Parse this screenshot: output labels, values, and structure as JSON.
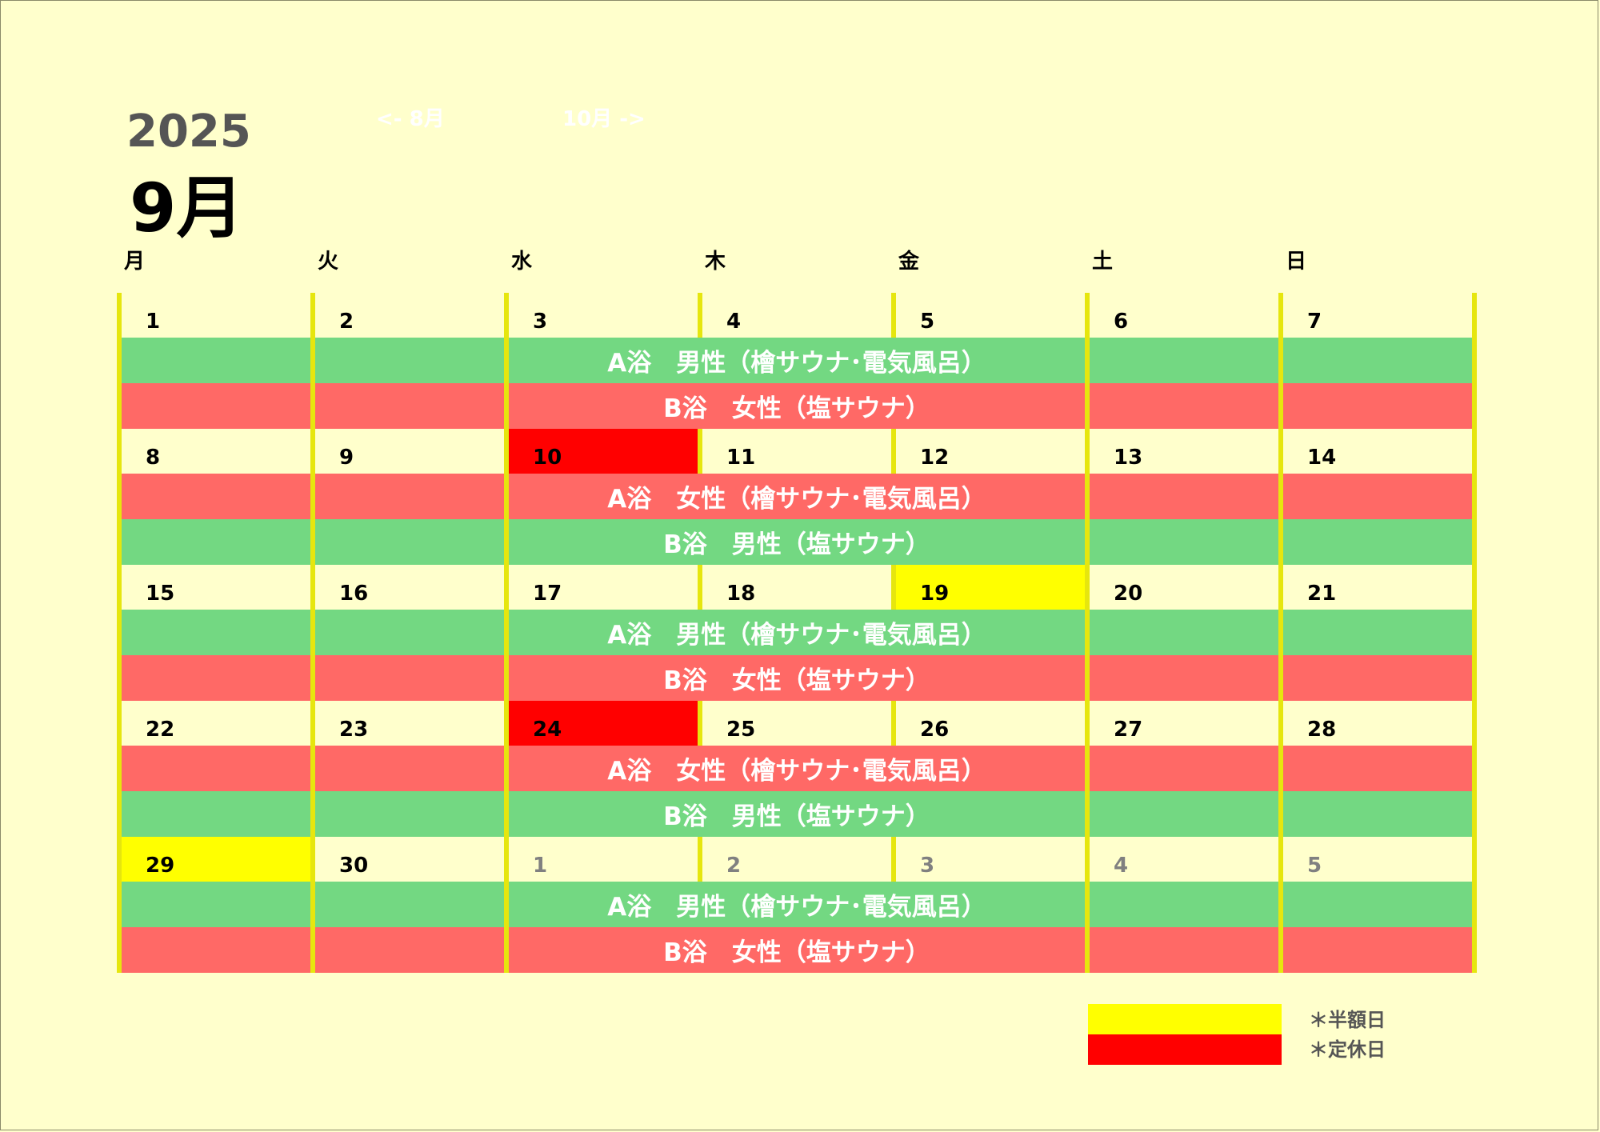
{
  "header": {
    "year": "2025",
    "month": "9月",
    "prev_link": "<- 8月",
    "next_link": "10月 ->"
  },
  "weekdays": [
    "月",
    "火",
    "水",
    "木",
    "金",
    "土",
    "日"
  ],
  "colors": {
    "background": "#ffffcc",
    "cell": "#ffffcc",
    "green_band": "#73d882",
    "red_band": "#ff6966",
    "half_price": "#ffff00",
    "closed": "#ff0000",
    "divider": "#e6e60e",
    "other_month_text": "#808080"
  },
  "weeks": [
    {
      "days": [
        {
          "label": "1",
          "status": "normal",
          "current_month": true
        },
        {
          "label": "2",
          "status": "normal",
          "current_month": true
        },
        {
          "label": "3",
          "status": "normal",
          "current_month": true
        },
        {
          "label": "4",
          "status": "normal",
          "current_month": true
        },
        {
          "label": "5",
          "status": "normal",
          "current_month": true
        },
        {
          "label": "6",
          "status": "normal",
          "current_month": true
        },
        {
          "label": "7",
          "status": "normal",
          "current_month": true
        }
      ],
      "bands": [
        {
          "text": "A浴　男性（檜サウナ･電気風呂）",
          "color": "green"
        },
        {
          "text": "B浴　女性（塩サウナ）",
          "color": "red"
        }
      ]
    },
    {
      "days": [
        {
          "label": "8",
          "status": "normal",
          "current_month": true
        },
        {
          "label": "9",
          "status": "normal",
          "current_month": true
        },
        {
          "label": "10",
          "status": "closed",
          "current_month": true
        },
        {
          "label": "11",
          "status": "normal",
          "current_month": true
        },
        {
          "label": "12",
          "status": "normal",
          "current_month": true
        },
        {
          "label": "13",
          "status": "normal",
          "current_month": true
        },
        {
          "label": "14",
          "status": "normal",
          "current_month": true
        }
      ],
      "bands": [
        {
          "text": "A浴　女性（檜サウナ･電気風呂）",
          "color": "red"
        },
        {
          "text": "B浴　男性（塩サウナ）",
          "color": "green"
        }
      ]
    },
    {
      "days": [
        {
          "label": "15",
          "status": "normal",
          "current_month": true
        },
        {
          "label": "16",
          "status": "normal",
          "current_month": true
        },
        {
          "label": "17",
          "status": "normal",
          "current_month": true
        },
        {
          "label": "18",
          "status": "normal",
          "current_month": true
        },
        {
          "label": "19",
          "status": "half_price",
          "current_month": true
        },
        {
          "label": "20",
          "status": "normal",
          "current_month": true
        },
        {
          "label": "21",
          "status": "normal",
          "current_month": true
        }
      ],
      "bands": [
        {
          "text": "A浴　男性（檜サウナ･電気風呂）",
          "color": "green"
        },
        {
          "text": "B浴　女性（塩サウナ）",
          "color": "red"
        }
      ]
    },
    {
      "days": [
        {
          "label": "22",
          "status": "normal",
          "current_month": true
        },
        {
          "label": "23",
          "status": "normal",
          "current_month": true
        },
        {
          "label": "24",
          "status": "closed",
          "current_month": true
        },
        {
          "label": "25",
          "status": "normal",
          "current_month": true
        },
        {
          "label": "26",
          "status": "normal",
          "current_month": true
        },
        {
          "label": "27",
          "status": "normal",
          "current_month": true
        },
        {
          "label": "28",
          "status": "normal",
          "current_month": true
        }
      ],
      "bands": [
        {
          "text": "A浴　女性（檜サウナ･電気風呂）",
          "color": "red"
        },
        {
          "text": "B浴　男性（塩サウナ）",
          "color": "green"
        }
      ]
    },
    {
      "days": [
        {
          "label": "29",
          "status": "half_price",
          "current_month": true
        },
        {
          "label": "30",
          "status": "normal",
          "current_month": true
        },
        {
          "label": "1",
          "status": "normal",
          "current_month": false
        },
        {
          "label": "2",
          "status": "normal",
          "current_month": false
        },
        {
          "label": "3",
          "status": "normal",
          "current_month": false
        },
        {
          "label": "4",
          "status": "normal",
          "current_month": false
        },
        {
          "label": "5",
          "status": "normal",
          "current_month": false
        }
      ],
      "bands": [
        {
          "text": "A浴　男性（檜サウナ･電気風呂）",
          "color": "green"
        },
        {
          "text": "B浴　女性（塩サウナ）",
          "color": "red"
        }
      ]
    }
  ],
  "legend": [
    {
      "label": "＊半額日",
      "color": "#ffff00"
    },
    {
      "label": "＊定休日",
      "color": "#ff0000"
    }
  ]
}
